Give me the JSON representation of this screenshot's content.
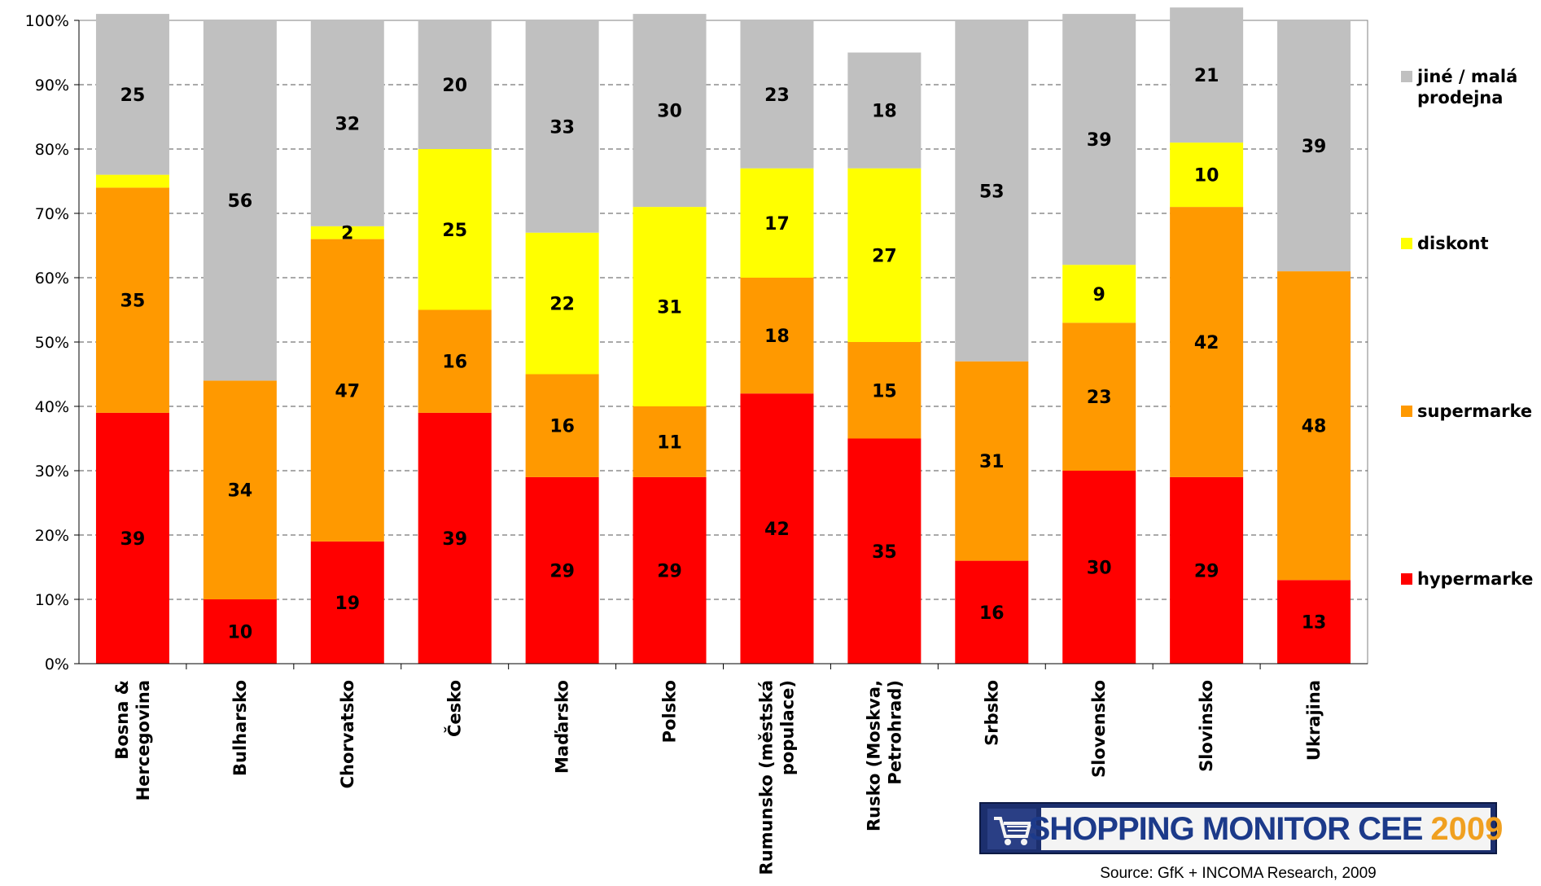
{
  "chart_data": {
    "type": "bar",
    "stacked": true,
    "categories": [
      "Bosna & Hercegovina",
      "Bulharsko",
      "Chorvatsko",
      "Česko",
      "Maďarsko",
      "Polsko",
      "Rumunsko (městská populace)",
      "Rusko (Moskva, Petrohrad)",
      "Srbsko",
      "Slovensko",
      "Slovinsko",
      "Ukrajina"
    ],
    "category_lines": [
      [
        "Bosna &",
        "Hercegovina"
      ],
      [
        "Bulharsko"
      ],
      [
        "Chorvatsko"
      ],
      [
        "Česko"
      ],
      [
        "Maďarsko"
      ],
      [
        "Polsko"
      ],
      [
        "Rumunsko (městská",
        "populace)"
      ],
      [
        "Rusko (Moskva,",
        "Petrohrad)"
      ],
      [
        "Srbsko"
      ],
      [
        "Slovensko"
      ],
      [
        "Slovinsko"
      ],
      [
        "Ukrajina"
      ]
    ],
    "series": [
      {
        "name": "hypermarke",
        "color": "#ff0000",
        "values": [
          39,
          10,
          19,
          39,
          29,
          29,
          42,
          35,
          16,
          30,
          29,
          13
        ]
      },
      {
        "name": "supermarke",
        "color": "#ff9900",
        "values": [
          35,
          34,
          47,
          16,
          16,
          11,
          18,
          15,
          31,
          23,
          42,
          48
        ]
      },
      {
        "name": "diskont",
        "color": "#ffff00",
        "values": [
          2,
          0,
          2,
          25,
          22,
          31,
          17,
          27,
          0,
          9,
          10,
          0
        ]
      },
      {
        "name": "jiné / malá prodejna",
        "color": "#c0c0c0",
        "values": [
          25,
          56,
          32,
          20,
          33,
          30,
          23,
          18,
          53,
          39,
          21,
          39
        ]
      }
    ],
    "label_shown": [
      [
        true,
        true,
        true,
        true,
        true,
        true,
        true,
        true,
        true,
        true,
        true,
        true
      ],
      [
        true,
        true,
        true,
        true,
        true,
        true,
        true,
        true,
        true,
        true,
        true,
        true
      ],
      [
        false,
        false,
        true,
        true,
        true,
        true,
        true,
        true,
        false,
        true,
        true,
        false
      ],
      [
        true,
        true,
        true,
        true,
        true,
        true,
        true,
        true,
        true,
        true,
        true,
        true
      ]
    ],
    "legend_lines": [
      [
        "hypermarke"
      ],
      [
        "supermarke"
      ],
      [
        "diskont"
      ],
      [
        "jiné / malá",
        "prodejna"
      ]
    ],
    "ylim": [
      0,
      100
    ],
    "yticks": [
      "0%",
      "10%",
      "20%",
      "30%",
      "40%",
      "50%",
      "60%",
      "70%",
      "80%",
      "90%",
      "100%"
    ],
    "grid": "dashed horizontal",
    "legend_position": "right"
  },
  "logo": {
    "text": "SHOPPING MONITOR CEE",
    "year": "2009"
  },
  "source": "Source: GfK + INCOMA Research, 2009"
}
